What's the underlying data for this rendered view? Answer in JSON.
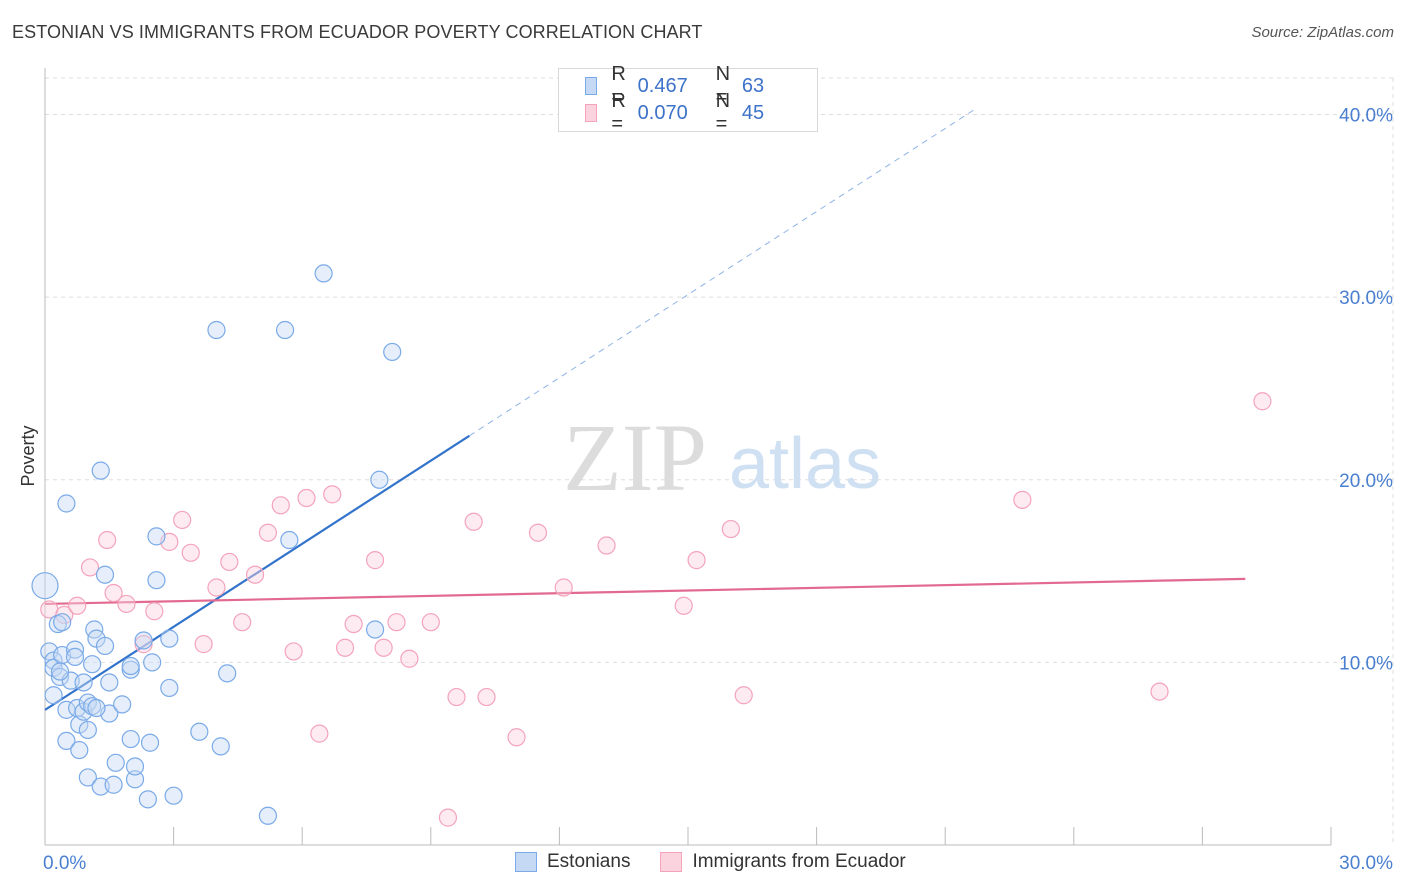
{
  "header": {
    "title": "ESTONIAN VS IMMIGRANTS FROM ECUADOR POVERTY CORRELATION CHART",
    "source": "Source: ZipAtlas.com"
  },
  "watermark": {
    "zip": "ZIP",
    "atlas": "atlas"
  },
  "legend_top": [
    {
      "r_label": "R =",
      "r_value": "0.467",
      "n_label": "N =",
      "n_value": "63",
      "color": "#7aaae8"
    },
    {
      "r_label": "R =",
      "r_value": "0.070",
      "n_label": "N =",
      "n_value": "45",
      "color": "#f4a3bb"
    }
  ],
  "legend_bottom": [
    {
      "label": "Estonians",
      "color": "#7aaae8"
    },
    {
      "label": "Immigrants from Ecuador",
      "color": "#f4a3bb"
    }
  ],
  "chart_data": {
    "type": "scatter",
    "title": "ESTONIAN VS IMMIGRANTS FROM ECUADOR POVERTY CORRELATION CHART",
    "xlabel": "",
    "ylabel": "Poverty",
    "xlim": [
      0,
      30
    ],
    "ylim": [
      0,
      42
    ],
    "x_tick_labels": [
      "0.0%",
      "30.0%"
    ],
    "y_ticks": [
      10,
      20,
      30,
      40
    ],
    "y_tick_labels": [
      "10.0%",
      "20.0%",
      "30.0%",
      "40.0%"
    ],
    "x_minor_ticks": [
      0,
      3,
      6,
      9,
      12,
      15,
      18,
      21,
      24,
      27,
      30
    ],
    "grid": true,
    "series": [
      {
        "name": "Estonians",
        "color": "#7aaae8",
        "line_color": "#3273cc",
        "trend": {
          "x0": 0,
          "y0": 7.4,
          "x_solid_end": 9.9,
          "x_dash_end": 21.7,
          "slope": 1.516
        },
        "points": [
          [
            0.0,
            14.2
          ],
          [
            0.1,
            10.6
          ],
          [
            0.2,
            10.1
          ],
          [
            0.2,
            9.7
          ],
          [
            0.2,
            8.2
          ],
          [
            0.3,
            12.1
          ],
          [
            0.35,
            9.2
          ],
          [
            0.4,
            12.2
          ],
          [
            0.4,
            10.4
          ],
          [
            0.5,
            18.7
          ],
          [
            0.5,
            7.4
          ],
          [
            0.5,
            5.7
          ],
          [
            0.6,
            9.0
          ],
          [
            0.7,
            10.7
          ],
          [
            0.7,
            10.3
          ],
          [
            0.75,
            7.5
          ],
          [
            0.8,
            6.6
          ],
          [
            0.8,
            5.2
          ],
          [
            0.9,
            8.9
          ],
          [
            0.9,
            7.3
          ],
          [
            1.0,
            6.3
          ],
          [
            1.0,
            3.7
          ],
          [
            1.0,
            7.8
          ],
          [
            1.1,
            9.9
          ],
          [
            1.1,
            7.6
          ],
          [
            1.15,
            11.8
          ],
          [
            1.2,
            11.3
          ],
          [
            1.3,
            3.2
          ],
          [
            1.3,
            20.5
          ],
          [
            1.4,
            14.8
          ],
          [
            1.4,
            10.9
          ],
          [
            1.5,
            7.2
          ],
          [
            1.5,
            8.9
          ],
          [
            1.6,
            3.3
          ],
          [
            1.65,
            4.5
          ],
          [
            1.8,
            7.7
          ],
          [
            2.0,
            5.8
          ],
          [
            2.0,
            9.6
          ],
          [
            2.0,
            9.8
          ],
          [
            2.1,
            3.6
          ],
          [
            2.1,
            4.3
          ],
          [
            2.3,
            11.2
          ],
          [
            2.4,
            2.5
          ],
          [
            2.45,
            5.6
          ],
          [
            2.5,
            10.0
          ],
          [
            2.6,
            16.9
          ],
          [
            2.6,
            14.5
          ],
          [
            2.9,
            11.3
          ],
          [
            2.9,
            8.6
          ],
          [
            3.0,
            2.7
          ],
          [
            3.6,
            6.2
          ],
          [
            4.0,
            28.2
          ],
          [
            4.1,
            5.4
          ],
          [
            4.25,
            9.4
          ],
          [
            5.2,
            1.6
          ],
          [
            5.6,
            28.2
          ],
          [
            5.7,
            16.7
          ],
          [
            6.5,
            31.3
          ],
          [
            7.7,
            11.8
          ],
          [
            7.8,
            20.0
          ],
          [
            8.1,
            27.0
          ],
          [
            0.35,
            9.5
          ],
          [
            1.2,
            7.5
          ]
        ]
      },
      {
        "name": "Immigrants from Ecuador",
        "color": "#f4a3bb",
        "line_color": "#e2698f",
        "trend": {
          "x0": 0,
          "y0": 13.2,
          "x_end": 28.0,
          "slope": 0.049
        },
        "points": [
          [
            0.1,
            12.9
          ],
          [
            0.45,
            12.6
          ],
          [
            0.75,
            13.1
          ],
          [
            1.05,
            15.2
          ],
          [
            1.45,
            16.7
          ],
          [
            1.6,
            13.8
          ],
          [
            1.9,
            13.2
          ],
          [
            2.3,
            11.0
          ],
          [
            2.55,
            12.8
          ],
          [
            2.9,
            16.6
          ],
          [
            3.2,
            17.8
          ],
          [
            3.4,
            16.0
          ],
          [
            3.7,
            11.0
          ],
          [
            4.0,
            14.1
          ],
          [
            4.3,
            15.5
          ],
          [
            4.6,
            12.2
          ],
          [
            4.9,
            14.8
          ],
          [
            5.2,
            17.1
          ],
          [
            5.5,
            18.6
          ],
          [
            5.8,
            10.6
          ],
          [
            6.1,
            19.0
          ],
          [
            6.4,
            6.1
          ],
          [
            6.7,
            19.2
          ],
          [
            7.0,
            10.8
          ],
          [
            7.2,
            12.1
          ],
          [
            7.7,
            15.6
          ],
          [
            7.9,
            10.8
          ],
          [
            8.2,
            12.2
          ],
          [
            8.5,
            10.2
          ],
          [
            9.0,
            12.2
          ],
          [
            9.4,
            1.5
          ],
          [
            9.6,
            8.1
          ],
          [
            10.0,
            17.7
          ],
          [
            10.3,
            8.1
          ],
          [
            11.0,
            5.9
          ],
          [
            11.5,
            17.1
          ],
          [
            12.1,
            14.1
          ],
          [
            13.1,
            16.4
          ],
          [
            14.9,
            13.1
          ],
          [
            15.2,
            15.6
          ],
          [
            16.0,
            17.3
          ],
          [
            16.3,
            8.2
          ],
          [
            22.8,
            18.9
          ],
          [
            26.0,
            8.4
          ],
          [
            28.4,
            24.3
          ]
        ]
      }
    ]
  }
}
